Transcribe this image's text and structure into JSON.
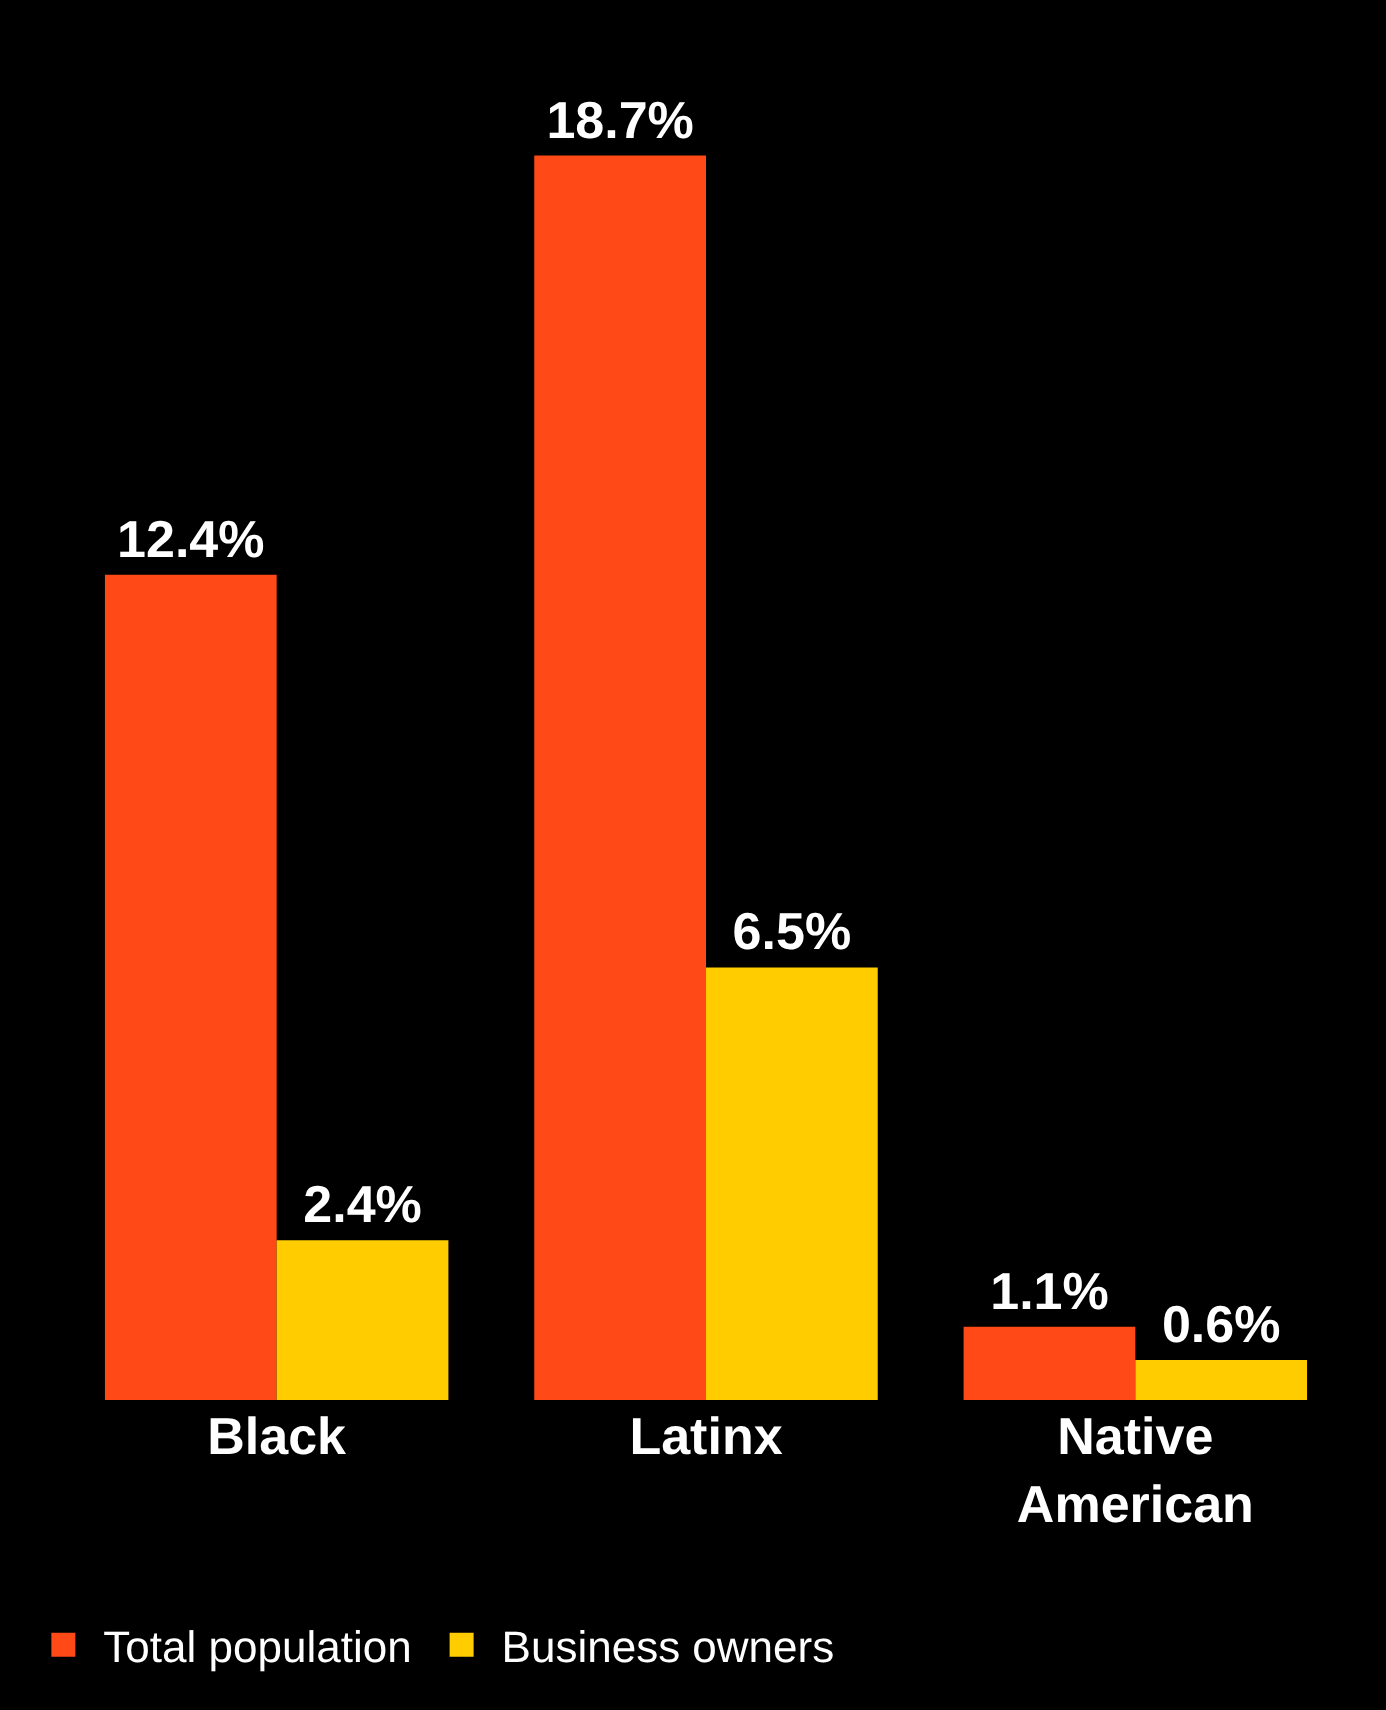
{
  "chart_data": {
    "type": "bar",
    "categories": [
      "Black",
      "Latinx",
      "Native American"
    ],
    "series": [
      {
        "name": "Total population",
        "color": "#ff4a17",
        "values": [
          12.4,
          18.7,
          1.1
        ],
        "value_labels": [
          "12.4%",
          "18.7%",
          "1.1%"
        ]
      },
      {
        "name": "Business owners",
        "color": "#ffcc00",
        "values": [
          2.4,
          6.5,
          0.6
        ],
        "value_labels": [
          "2.4%",
          "6.5%",
          "0.6%"
        ]
      }
    ],
    "legend": "bottom left",
    "grid": false
  }
}
